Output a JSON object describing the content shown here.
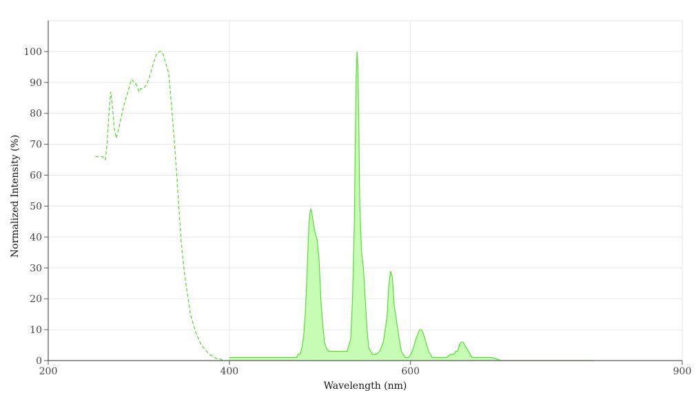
{
  "chart_data": {
    "type": "area",
    "xlabel": "Wavelength (nm)",
    "ylabel": "Normalized Intensity (%)",
    "xlim": [
      200,
      900
    ],
    "ylim": [
      0,
      110
    ],
    "xticks": [
      200,
      400,
      600,
      900
    ],
    "yticks": [
      0,
      10,
      20,
      30,
      40,
      50,
      60,
      70,
      80,
      90,
      100
    ],
    "grid": true,
    "colors": {
      "line": "#55dd33",
      "fill": "#c6fcb4"
    },
    "series": [
      {
        "style": "dashed",
        "x": [
          252,
          256,
          260,
          263,
          265,
          267,
          269,
          271,
          273,
          275,
          277,
          280,
          283,
          286,
          289,
          292,
          295,
          298,
          300,
          302,
          305,
          308,
          311,
          314,
          317,
          320,
          323,
          325,
          327,
          330,
          333,
          336,
          339,
          341,
          343,
          345,
          347,
          349,
          351,
          353,
          355,
          357,
          360,
          363,
          366,
          369,
          372,
          375,
          378,
          381,
          384,
          387,
          390,
          393,
          395
        ],
        "y": [
          66,
          66,
          66,
          65,
          70,
          80,
          87,
          82,
          75,
          72,
          74,
          78,
          82,
          85,
          88,
          91,
          90,
          89,
          87,
          88,
          88,
          89,
          91,
          94,
          97,
          99.5,
          100,
          100,
          99,
          96,
          93,
          83,
          72,
          64,
          55,
          46,
          38,
          32,
          27,
          23,
          19,
          15,
          12,
          9,
          7,
          5,
          4,
          3,
          2,
          1.5,
          1,
          0.5,
          0.5,
          0,
          0
        ]
      },
      {
        "style": "filled",
        "x": [
          400,
          420,
          440,
          460,
          470,
          474,
          476,
          478,
          480,
          482,
          484,
          486,
          487,
          488,
          489,
          490,
          491,
          493,
          495,
          497,
          499,
          501,
          503,
          505,
          507,
          510,
          520,
          530,
          534,
          536,
          538,
          539,
          540,
          541,
          542,
          543,
          544,
          546,
          548,
          550,
          552,
          554,
          556,
          558,
          560,
          562,
          566,
          570,
          574,
          576,
          578,
          580,
          581,
          582,
          583,
          584,
          586,
          588,
          590,
          592,
          594,
          596,
          598,
          600,
          602,
          606,
          610,
          612,
          614,
          616,
          618,
          620,
          622,
          624,
          626,
          628,
          630,
          640,
          644,
          646,
          648,
          650,
          652,
          654,
          656,
          658,
          660,
          662,
          664,
          666,
          668,
          670,
          680,
          690,
          700,
          720,
          740,
          760,
          780,
          800,
          802
        ],
        "y": [
          1,
          1,
          1,
          1,
          1,
          1,
          2,
          2,
          4,
          8,
          16,
          30,
          38,
          45,
          48,
          49,
          48,
          44,
          41,
          39,
          33,
          20,
          12,
          6,
          4,
          3,
          3,
          3,
          7,
          20,
          45,
          70,
          92,
          100,
          95,
          75,
          50,
          35,
          30,
          20,
          10,
          4,
          3,
          2,
          2,
          2,
          3,
          6,
          14,
          24,
          29,
          27,
          22,
          18,
          16,
          14,
          10,
          6,
          3,
          2,
          1,
          1,
          1,
          2,
          3,
          7,
          10,
          10,
          9,
          7,
          5,
          3,
          2,
          1,
          1,
          1,
          1,
          1,
          2,
          2,
          2,
          3,
          3,
          5,
          6,
          6,
          5,
          4,
          3,
          2,
          1,
          1,
          1,
          1,
          0,
          0,
          0,
          0,
          0,
          0,
          0
        ]
      }
    ]
  }
}
